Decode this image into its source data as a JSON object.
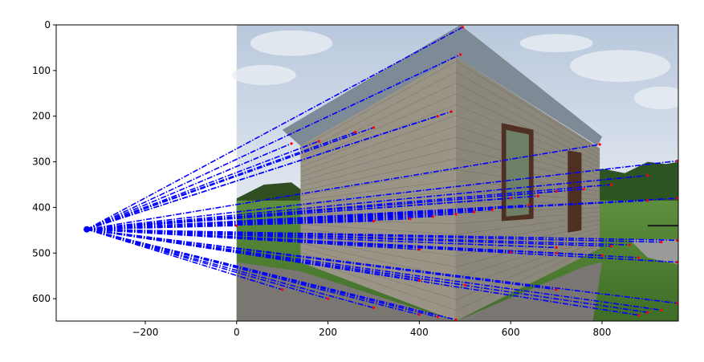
{
  "chart_data": {
    "type": "line",
    "title": "",
    "xlabel": "",
    "ylabel": "",
    "xlim": [
      -395,
      967
    ],
    "ylim": [
      649,
      0
    ],
    "y_inverted": true,
    "x_ticks": [
      -200,
      0,
      200,
      400,
      600,
      800
    ],
    "x_tick_labels": [
      "−200",
      "0",
      "200",
      "400",
      "600",
      "800"
    ],
    "y_ticks": [
      0,
      100,
      200,
      300,
      400,
      500,
      600
    ],
    "y_tick_labels": [
      "0",
      "100",
      "200",
      "300",
      "400",
      "500",
      "600"
    ],
    "grid": false,
    "legend": "none",
    "background_image": {
      "description_key": "shed-photo",
      "extent": {
        "x": [
          0,
          967
        ],
        "y": [
          0,
          649
        ]
      },
      "colors": {
        "sky": "#c7d3e4",
        "cloud": "#e9edf3",
        "wall": "#9a9486",
        "wall_shadow": "#6d675c",
        "roof": "#7e8a95",
        "grass": "#4d7f32",
        "gravel": "#7a7672",
        "window": "#4e3023"
      }
    },
    "vanishing_point": {
      "x": -328,
      "y": 448,
      "color": "#0000ff"
    },
    "line_style": {
      "color": "#0000ff",
      "dash": "dashdot",
      "endpoint_color": "#ff0000"
    },
    "series": [
      {
        "endpoints": [
          [
            495,
            5
          ],
          [
            490,
            65
          ],
          [
            470,
            190
          ],
          [
            440,
            200
          ],
          [
            300,
            225
          ],
          [
            260,
            235
          ],
          [
            180,
            255
          ],
          [
            120,
            260
          ],
          [
            795,
            262
          ],
          [
            965,
            298
          ],
          [
            900,
            330
          ],
          [
            820,
            350
          ],
          [
            760,
            360
          ],
          [
            700,
            365
          ],
          [
            660,
            375
          ],
          [
            600,
            380
          ],
          [
            965,
            380
          ],
          [
            900,
            385
          ],
          [
            640,
            395
          ],
          [
            560,
            405
          ],
          [
            520,
            410
          ],
          [
            480,
            415
          ],
          [
            430,
            420
          ],
          [
            380,
            425
          ],
          [
            300,
            430
          ],
          [
            0,
            440
          ],
          [
            965,
            472
          ],
          [
            930,
            476
          ],
          [
            860,
            482
          ],
          [
            820,
            485
          ],
          [
            700,
            488
          ],
          [
            400,
            492
          ],
          [
            965,
            520
          ],
          [
            880,
            510
          ],
          [
            800,
            505
          ],
          [
            700,
            500
          ],
          [
            600,
            498
          ],
          [
            965,
            610
          ],
          [
            930,
            625
          ],
          [
            900,
            630
          ],
          [
            880,
            636
          ],
          [
            700,
            580
          ],
          [
            500,
            570
          ],
          [
            400,
            560
          ],
          [
            480,
            646
          ],
          [
            440,
            640
          ],
          [
            400,
            635
          ],
          [
            300,
            620
          ],
          [
            200,
            600
          ],
          [
            100,
            580
          ]
        ]
      }
    ]
  }
}
